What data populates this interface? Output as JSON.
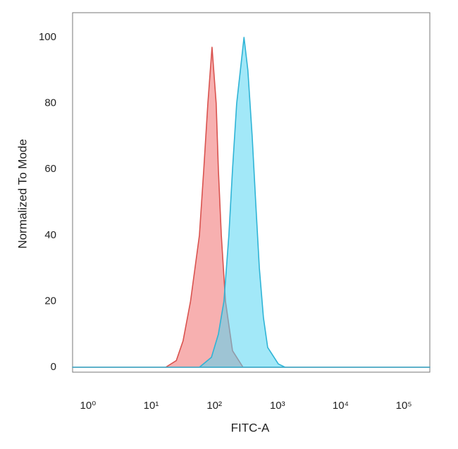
{
  "chart_data": {
    "type": "area",
    "x_label": "FITC-A",
    "y_label": "Normalized To Mode",
    "xscale": "log",
    "xlim": [
      0.57,
      258000
    ],
    "ylim": [
      -1.5,
      107.5
    ],
    "xticks": [
      {
        "value": 1,
        "label": "10⁰"
      },
      {
        "value": 10,
        "label": "10¹"
      },
      {
        "value": 100,
        "label": "10²"
      },
      {
        "value": 1000,
        "label": "10³"
      },
      {
        "value": 10000,
        "label": "10⁴"
      },
      {
        "value": 100000,
        "label": "10⁵"
      }
    ],
    "yticks": [
      0,
      20,
      40,
      60,
      80,
      100
    ],
    "series": [
      {
        "color": "#d9534f",
        "fill": "#f07070",
        "x": [
          0.57,
          17,
          25,
          32,
          42,
          58,
          68,
          79,
          92,
          107,
          116,
          129,
          150,
          194,
          285,
          258000
        ],
        "values": [
          0,
          0,
          2,
          8,
          20,
          40,
          60,
          80,
          97,
          80,
          60,
          40,
          20,
          5,
          0,
          0
        ]
      },
      {
        "color": "#2fb4d6",
        "fill": "#55d6f2",
        "x": [
          0.57,
          58,
          90,
          116,
          142,
          170,
          194,
          226,
          295,
          340,
          398,
          452,
          516,
          600,
          700,
          1030,
          1320,
          258000
        ],
        "values": [
          0,
          0,
          3,
          10,
          20,
          40,
          60,
          80,
          100,
          90,
          70,
          50,
          30,
          15,
          6,
          1,
          0,
          0
        ]
      }
    ]
  }
}
